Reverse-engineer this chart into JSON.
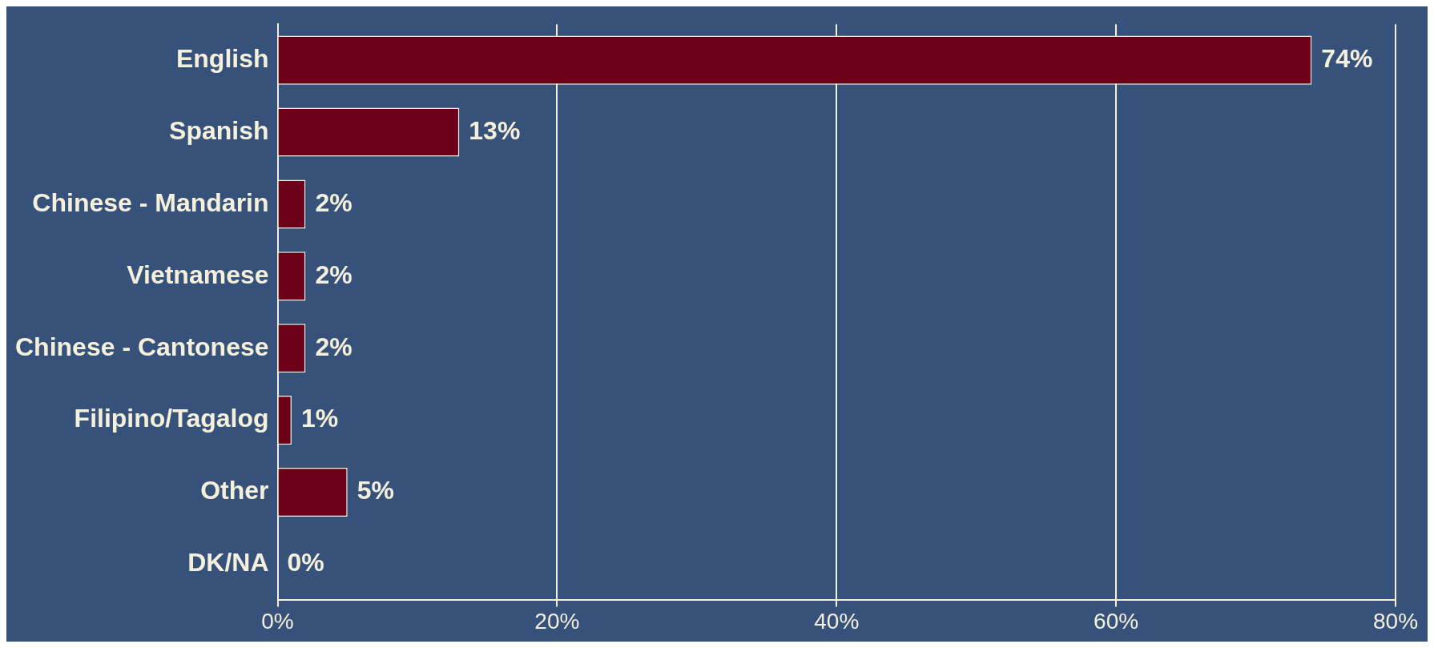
{
  "chart_data": {
    "type": "bar",
    "orientation": "horizontal",
    "categories": [
      "English",
      "Spanish",
      "Chinese - Mandarin",
      "Vietnamese",
      "Chinese - Cantonese",
      "Filipino/Tagalog",
      "Other",
      "DK/NA"
    ],
    "values": [
      74,
      13,
      2,
      2,
      2,
      1,
      5,
      0
    ],
    "value_labels": [
      "74%",
      "13%",
      "2%",
      "2%",
      "2%",
      "1%",
      "5%",
      "0%"
    ],
    "color": "#6b0018",
    "xlim": [
      0,
      80
    ],
    "xticks": [
      {
        "value": 0,
        "label": "0%"
      },
      {
        "value": 20,
        "label": "20%"
      },
      {
        "value": 40,
        "label": "40%"
      },
      {
        "value": 60,
        "label": "60%"
      },
      {
        "value": 80,
        "label": "80%"
      }
    ],
    "grid": "x"
  }
}
